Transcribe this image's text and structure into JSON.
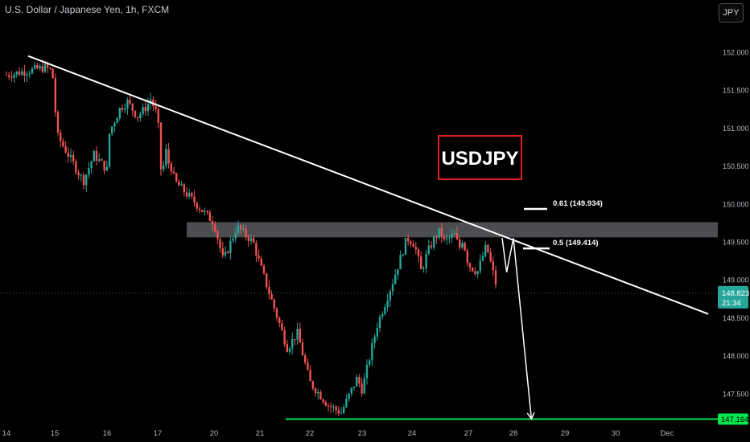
{
  "header": {
    "title": "U.S. Dollar / Japanese Yen, 1h, FXCM",
    "currency_label": "JPY"
  },
  "price_tag": {
    "price": "148.823",
    "countdown": "21:34"
  },
  "level_tag": "147.164",
  "colors": {
    "bull": "#26a69a",
    "bear": "#ef5350",
    "support_line": "#00e64d",
    "zone": "#8a8d93",
    "trendline": "#ffffff",
    "label_border": "#e01e1e",
    "label_text": "#ffffff",
    "price_line": "#26a69a",
    "background": "#000000"
  },
  "chart_data": {
    "type": "candlestick",
    "symbol_label": "USDJPY",
    "x_ticks": [
      "14",
      "15",
      "16",
      "17",
      "20",
      "21",
      "22",
      "23",
      "24",
      "27",
      "28",
      "29",
      "30",
      "Dec"
    ],
    "y_ticks": [
      "152.000",
      "151.500",
      "151.000",
      "150.500",
      "150.000",
      "149.500",
      "149.000",
      "148.500",
      "148.000",
      "147.500"
    ],
    "ylim": [
      147.05,
      152.25
    ],
    "x_tick_values": [
      14,
      15,
      16,
      17,
      20,
      21,
      22,
      23,
      24,
      27,
      28,
      29,
      30,
      31
    ],
    "candle_path_x": [
      14.0,
      14.8,
      14.95,
      15.05,
      15.3,
      15.55,
      15.75,
      16.0,
      16.05,
      16.25,
      16.4,
      16.6,
      16.8,
      16.85,
      17.0,
      17.2,
      17.45,
      17.55,
      17.7,
      17.9,
      20.0,
      20.2,
      20.5,
      20.85,
      21.3,
      21.55,
      21.75,
      22.0,
      22.35,
      22.6,
      22.9,
      23.0,
      23.3,
      23.6,
      23.9,
      24.15,
      24.5,
      24.8,
      25.2,
      25.5,
      25.7,
      26.0,
      26.3,
      26.5,
      26.7,
      27.0,
      27.2,
      27.4,
      27.65
    ],
    "candle_path_y": [
      151.7,
      151.8,
      151.75,
      150.9,
      150.6,
      150.3,
      150.65,
      150.45,
      150.95,
      151.25,
      151.35,
      151.15,
      151.3,
      151.4,
      151.15,
      150.35,
      150.7,
      150.55,
      150.5,
      150.3,
      149.75,
      149.25,
      149.7,
      149.5,
      148.6,
      148.1,
      148.3,
      147.65,
      147.35,
      147.25,
      147.7,
      147.55,
      148.4,
      148.95,
      149.55,
      149.45,
      149.1,
      149.35,
      149.55,
      149.65,
      149.5,
      149.55,
      149.6,
      149.4,
      149.55,
      149.2,
      149.1,
      149.45,
      148.85
    ],
    "resistance_zone": [
      149.56,
      149.76
    ],
    "trendline": {
      "from": [
        14.45,
        151.95
      ],
      "to": [
        31.8,
        148.55
      ]
    },
    "support_level": 147.164,
    "fib_levels": [
      {
        "label": "0.61 (149.934)",
        "value": 149.934
      },
      {
        "label": "0.5 (149.414)",
        "value": 149.414
      }
    ],
    "projection_path": [
      [
        27.75,
        149.55
      ],
      [
        27.85,
        149.1
      ],
      [
        28.0,
        149.55
      ],
      [
        28.35,
        147.164
      ]
    ],
    "last_price": 148.823
  }
}
